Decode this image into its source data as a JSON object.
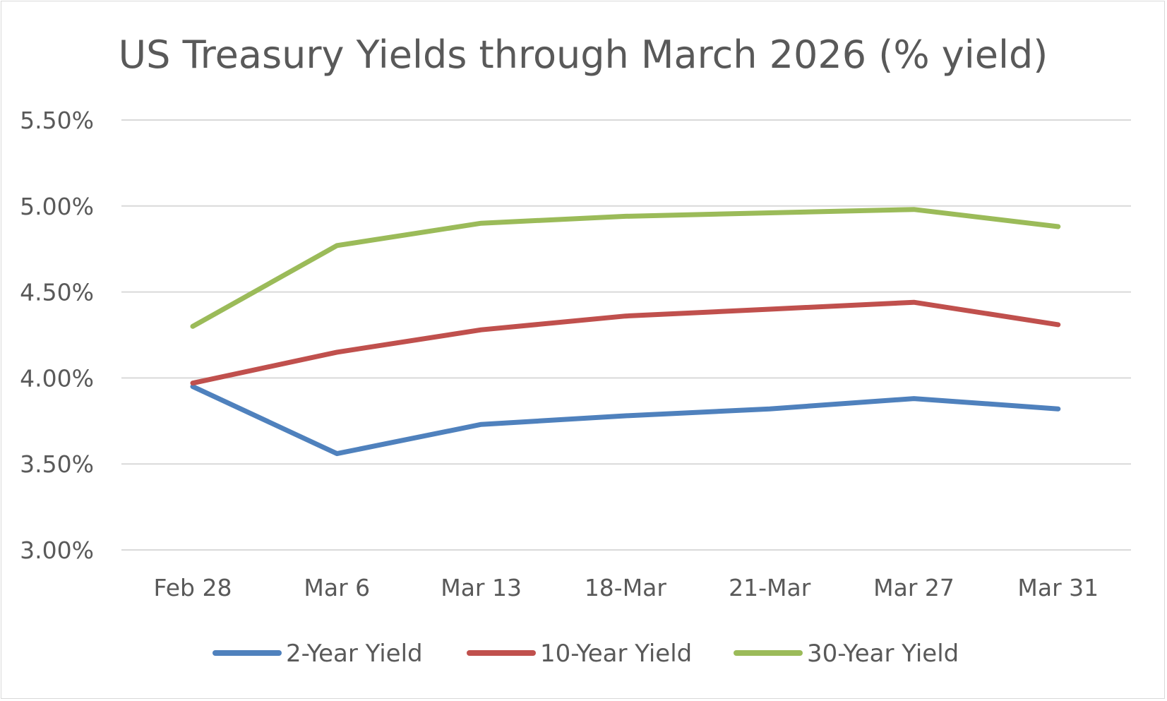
{
  "chart_data": {
    "type": "line",
    "title": "US Treasury Yields through March 2026 (% yield)",
    "xlabel": "",
    "ylabel": "",
    "categories": [
      "Feb 28",
      "Mar 6",
      "Mar 13",
      "18-Mar",
      "21-Mar",
      "Mar 27",
      "Mar 31"
    ],
    "ylim": [
      3.0,
      5.5
    ],
    "yticks": [
      3.0,
      3.5,
      4.0,
      4.5,
      5.0,
      5.5
    ],
    "ytick_labels": [
      "3.00%",
      "3.50%",
      "4.00%",
      "4.50%",
      "5.00%",
      "5.50%"
    ],
    "grid": true,
    "legend_position": "bottom",
    "series": [
      {
        "name": "2-Year Yield",
        "color": "#4f81bd",
        "values": [
          3.95,
          3.56,
          3.73,
          3.78,
          3.82,
          3.88,
          3.82
        ]
      },
      {
        "name": "10-Year Yield",
        "color": "#c0504d",
        "values": [
          3.97,
          4.15,
          4.28,
          4.36,
          4.4,
          4.44,
          4.31
        ]
      },
      {
        "name": "30-Year Yield",
        "color": "#9bbb59",
        "values": [
          4.3,
          4.77,
          4.9,
          4.94,
          4.96,
          4.98,
          4.88
        ]
      }
    ]
  }
}
